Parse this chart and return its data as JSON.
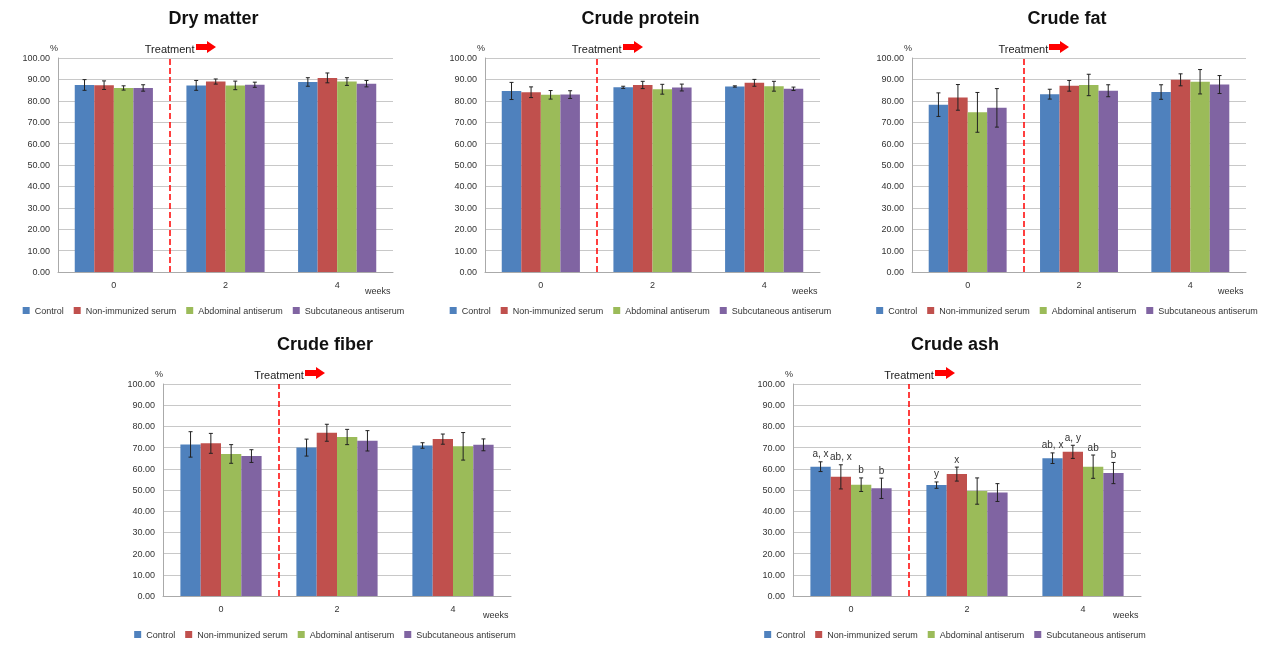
{
  "chart_data": [
    {
      "type": "bar",
      "title": "Dry matter",
      "xlabel": "weeks",
      "ylabel": "%",
      "x": [
        0,
        2,
        4
      ],
      "xlim": [
        -1,
        5
      ],
      "xticks": [
        0,
        2,
        4
      ],
      "ylim": [
        0,
        100
      ],
      "yticks": [
        {
          "value": 0,
          "label": "0.00"
        },
        {
          "value": 10,
          "label": "10.00"
        },
        {
          "value": 20,
          "label": "20.00"
        },
        {
          "value": 30,
          "label": "30.00"
        },
        {
          "value": 40,
          "label": "40.00"
        },
        {
          "value": 50,
          "label": "50.00"
        },
        {
          "value": 60,
          "label": "60.00"
        },
        {
          "value": 70,
          "label": "70.00"
        },
        {
          "value": 80,
          "label": "80.00"
        },
        {
          "value": 90,
          "label": "90.00"
        },
        {
          "value": 100,
          "label": "100.00"
        }
      ],
      "grid": "y",
      "legend": "bottom",
      "ref_lines": [
        {
          "axis": "x",
          "value": 1,
          "label": "Treatment",
          "color": "#ff0000",
          "line_style": "dashed"
        }
      ],
      "series": [
        {
          "name": "Control",
          "color": "#4f81bd",
          "values": [
            87.4,
            87.2,
            88.8
          ],
          "errors": [
            2.5,
            2.3,
            2
          ]
        },
        {
          "name": "Non-immunized serum",
          "color": "#c0504d",
          "values": [
            87.3,
            89,
            90.7
          ],
          "errors": [
            2,
            1.2,
            2.3
          ]
        },
        {
          "name": "Abdominal antiserum",
          "color": "#9bbb59",
          "values": [
            86,
            87.2,
            89
          ],
          "errors": [
            1,
            2,
            1.8
          ]
        },
        {
          "name": "Subcutaneous antiserum",
          "color": "#8064a2",
          "values": [
            86,
            87.5,
            88
          ],
          "errors": [
            1.5,
            1.2,
            1.5
          ]
        }
      ]
    },
    {
      "type": "bar",
      "title": "Crude protein",
      "xlabel": "weeks",
      "ylabel": "%",
      "x": [
        0,
        2,
        4
      ],
      "xlim": [
        -1,
        5
      ],
      "xticks": [
        0,
        2,
        4
      ],
      "ylim": [
        0,
        100
      ],
      "yticks": [
        {
          "value": 0,
          "label": "0.00"
        },
        {
          "value": 10,
          "label": "10.00"
        },
        {
          "value": 20,
          "label": "20.00"
        },
        {
          "value": 30,
          "label": "30.00"
        },
        {
          "value": 40,
          "label": "40.00"
        },
        {
          "value": 50,
          "label": "50.00"
        },
        {
          "value": 60,
          "label": "60.00"
        },
        {
          "value": 70,
          "label": "70.00"
        },
        {
          "value": 80,
          "label": "80.00"
        },
        {
          "value": 90,
          "label": "90.00"
        },
        {
          "value": 100,
          "label": "100.00"
        }
      ],
      "grid": "y",
      "legend": "bottom",
      "ref_lines": [
        {
          "axis": "x",
          "value": 1,
          "label": "Treatment",
          "color": "#ff0000",
          "line_style": "dashed"
        }
      ],
      "series": [
        {
          "name": "Control",
          "color": "#4f81bd",
          "values": [
            84.6,
            86.3,
            86.7
          ],
          "errors": [
            4,
            0.5,
            0.3
          ]
        },
        {
          "name": "Non-immunized serum",
          "color": "#c0504d",
          "values": [
            84,
            87.4,
            88.4
          ],
          "errors": [
            2.5,
            1.7,
            1.6
          ]
        },
        {
          "name": "Abdominal antiserum",
          "color": "#9bbb59",
          "values": [
            82.8,
            85.4,
            86.8
          ],
          "errors": [
            2,
            2.3,
            2.3
          ]
        },
        {
          "name": "Subcutaneous antiserum",
          "color": "#8064a2",
          "values": [
            82.9,
            86.2,
            85.6
          ],
          "errors": [
            1.8,
            1.6,
            0.8
          ]
        }
      ]
    },
    {
      "type": "bar",
      "title": "Crude fat",
      "xlabel": "weeks",
      "ylabel": "%",
      "x": [
        0,
        2,
        4
      ],
      "xlim": [
        -1,
        5
      ],
      "xticks": [
        0,
        2,
        4
      ],
      "ylim": [
        0,
        100
      ],
      "yticks": [
        {
          "value": 0,
          "label": "0.00"
        },
        {
          "value": 10,
          "label": "10.00"
        },
        {
          "value": 20,
          "label": "20.00"
        },
        {
          "value": 30,
          "label": "30.00"
        },
        {
          "value": 40,
          "label": "40.00"
        },
        {
          "value": 50,
          "label": "50.00"
        },
        {
          "value": 60,
          "label": "60.00"
        },
        {
          "value": 70,
          "label": "70.00"
        },
        {
          "value": 80,
          "label": "80.00"
        },
        {
          "value": 90,
          "label": "90.00"
        },
        {
          "value": 100,
          "label": "100.00"
        }
      ],
      "grid": "y",
      "legend": "bottom",
      "ref_lines": [
        {
          "axis": "x",
          "value": 1,
          "label": "Treatment",
          "color": "#ff0000",
          "line_style": "dashed"
        }
      ],
      "series": [
        {
          "name": "Control",
          "color": "#4f81bd",
          "values": [
            78.2,
            83.1,
            84.1
          ],
          "errors": [
            5.5,
            2.3,
            3.4
          ]
        },
        {
          "name": "Non-immunized serum",
          "color": "#c0504d",
          "values": [
            81.6,
            87,
            89.8
          ],
          "errors": [
            6,
            2.5,
            2.8
          ]
        },
        {
          "name": "Abdominal antiserum",
          "color": "#9bbb59",
          "values": [
            74.6,
            87.4,
            88.9
          ],
          "errors": [
            9.3,
            5,
            5.7
          ]
        },
        {
          "name": "Subcutaneous antiserum",
          "color": "#8064a2",
          "values": [
            76.7,
            84.7,
            87.6
          ],
          "errors": [
            9,
            2.8,
            4.2
          ]
        }
      ]
    },
    {
      "type": "bar",
      "title": "Crude fiber",
      "xlabel": "weeks",
      "ylabel": "%",
      "x": [
        0,
        2,
        4
      ],
      "xlim": [
        -1,
        5
      ],
      "xticks": [
        0,
        2,
        4
      ],
      "ylim": [
        0,
        100
      ],
      "yticks": [
        {
          "value": 0,
          "label": "0.00"
        },
        {
          "value": 10,
          "label": "10.00"
        },
        {
          "value": 20,
          "label": "20.00"
        },
        {
          "value": 30,
          "label": "30.00"
        },
        {
          "value": 40,
          "label": "40.00"
        },
        {
          "value": 50,
          "label": "50.00"
        },
        {
          "value": 60,
          "label": "60.00"
        },
        {
          "value": 70,
          "label": "70.00"
        },
        {
          "value": 80,
          "label": "80.00"
        },
        {
          "value": 90,
          "label": "90.00"
        },
        {
          "value": 100,
          "label": "100.00"
        }
      ],
      "grid": "y",
      "legend": "bottom",
      "ref_lines": [
        {
          "axis": "x",
          "value": 1,
          "label": "Treatment",
          "color": "#ff0000",
          "line_style": "dashed"
        }
      ],
      "series": [
        {
          "name": "Control",
          "color": "#4f81bd",
          "values": [
            71.5,
            70,
            71
          ],
          "errors": [
            6,
            4,
            1.3
          ]
        },
        {
          "name": "Non-immunized serum",
          "color": "#c0504d",
          "values": [
            72,
            77,
            74
          ],
          "errors": [
            4.7,
            4,
            2.4
          ]
        },
        {
          "name": "Abdominal antiserum",
          "color": "#9bbb59",
          "values": [
            67,
            75,
            70.6
          ],
          "errors": [
            4.4,
            3.6,
            6.5
          ]
        },
        {
          "name": "Subcutaneous antiserum",
          "color": "#8064a2",
          "values": [
            66,
            73.2,
            71.3
          ],
          "errors": [
            3,
            4.8,
            2.8
          ]
        }
      ]
    },
    {
      "type": "bar",
      "title": "Crude ash",
      "xlabel": "weeks",
      "ylabel": "%",
      "x": [
        0,
        2,
        4
      ],
      "xlim": [
        -1,
        5
      ],
      "xticks": [
        0,
        2,
        4
      ],
      "ylim": [
        0,
        100
      ],
      "yticks": [
        {
          "value": 0,
          "label": "0.00"
        },
        {
          "value": 10,
          "label": "10.00"
        },
        {
          "value": 20,
          "label": "20.00"
        },
        {
          "value": 30,
          "label": "30.00"
        },
        {
          "value": 40,
          "label": "40.00"
        },
        {
          "value": 50,
          "label": "50.00"
        },
        {
          "value": 60,
          "label": "60.00"
        },
        {
          "value": 70,
          "label": "70.00"
        },
        {
          "value": 80,
          "label": "80.00"
        },
        {
          "value": 90,
          "label": "90.00"
        },
        {
          "value": 100,
          "label": "100.00"
        }
      ],
      "grid": "y",
      "legend": "bottom",
      "ref_lines": [
        {
          "axis": "x",
          "value": 1,
          "label": "Treatment",
          "color": "#ff0000",
          "line_style": "dashed"
        }
      ],
      "series": [
        {
          "name": "Control",
          "color": "#4f81bd",
          "values": [
            61,
            52.3,
            65
          ],
          "errors": [
            2.3,
            1.5,
            2.5
          ],
          "value_labels": [
            "a, x",
            "y",
            "ab, x"
          ]
        },
        {
          "name": "Non-immunized serum",
          "color": "#c0504d",
          "values": [
            56.2,
            57.5,
            68
          ],
          "errors": [
            5.7,
            3.3,
            3.1
          ],
          "value_labels": [
            "ab, x",
            "x",
            "a, y"
          ]
        },
        {
          "name": "Abdominal antiserum",
          "color": "#9bbb59",
          "values": [
            52.5,
            49.5,
            61
          ],
          "errors": [
            3.2,
            6.2,
            5.5
          ],
          "value_labels": [
            "b",
            null,
            "ab"
          ]
        },
        {
          "name": "Subcutaneous antiserum",
          "color": "#8064a2",
          "values": [
            50.8,
            48.8,
            58
          ],
          "errors": [
            4.8,
            4.2,
            5
          ],
          "value_labels": [
            "b",
            null,
            "b"
          ]
        }
      ]
    }
  ]
}
